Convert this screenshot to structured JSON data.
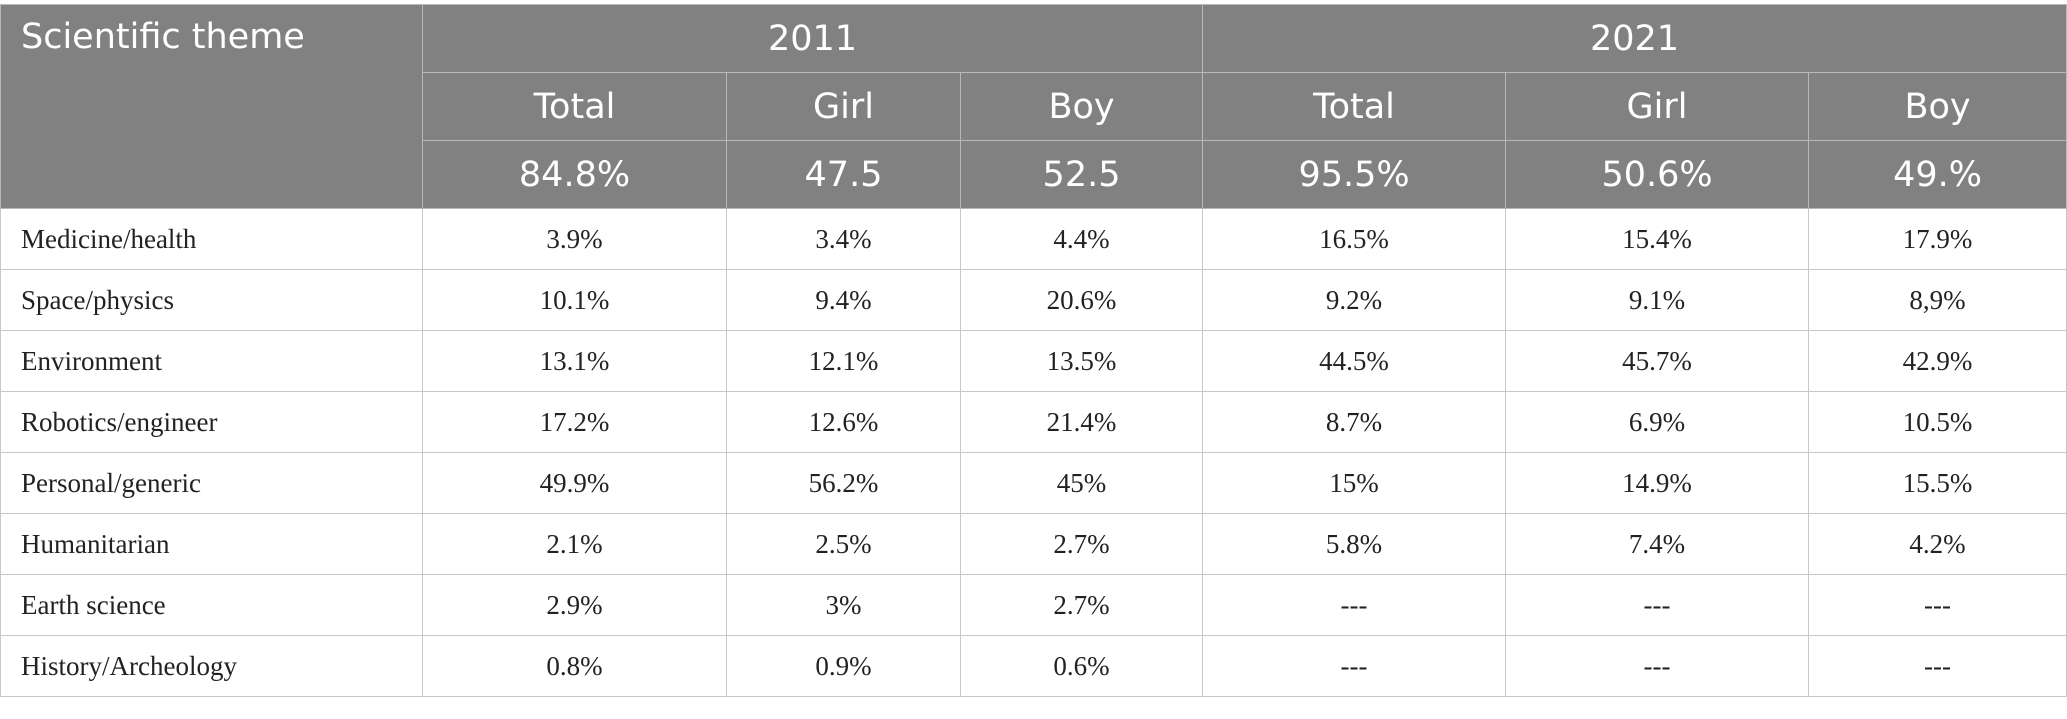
{
  "header": {
    "theme_label": "Scientific theme",
    "years": [
      "2011",
      "2021"
    ],
    "subheaders": [
      "Total",
      "Girl",
      "Boy",
      "Total",
      "Girl",
      "Boy"
    ],
    "totals": [
      "84.8%",
      "47.5",
      "52.5",
      "95.5%",
      "50.6%",
      "49.%"
    ]
  },
  "rows": [
    {
      "theme": "Medicine/health",
      "values": [
        "3.9%",
        "3.4%",
        "4.4%",
        "16.5%",
        "15.4%",
        "17.9%"
      ]
    },
    {
      "theme": "Space/physics",
      "values": [
        "10.1%",
        "9.4%",
        "20.6%",
        "9.2%",
        "9.1%",
        "8,9%"
      ]
    },
    {
      "theme": "Environment",
      "values": [
        "13.1%",
        "12.1%",
        "13.5%",
        "44.5%",
        "45.7%",
        "42.9%"
      ]
    },
    {
      "theme": "Robotics/engineer",
      "values": [
        "17.2%",
        "12.6%",
        "21.4%",
        "8.7%",
        "6.9%",
        "10.5%"
      ]
    },
    {
      "theme": "Personal/generic",
      "values": [
        "49.9%",
        "56.2%",
        "45%",
        "15%",
        "14.9%",
        "15.5%"
      ]
    },
    {
      "theme": "Humanitarian",
      "values": [
        "2.1%",
        "2.5%",
        "2.7%",
        "5.8%",
        "7.4%",
        "4.2%"
      ]
    },
    {
      "theme": "Earth science",
      "values": [
        "2.9%",
        "3%",
        "2.7%",
        "---",
        "---",
        "---"
      ]
    },
    {
      "theme": "History/Archeology",
      "values": [
        "0.8%",
        "0.9%",
        "0.6%",
        "---",
        "---",
        "---"
      ]
    }
  ]
}
